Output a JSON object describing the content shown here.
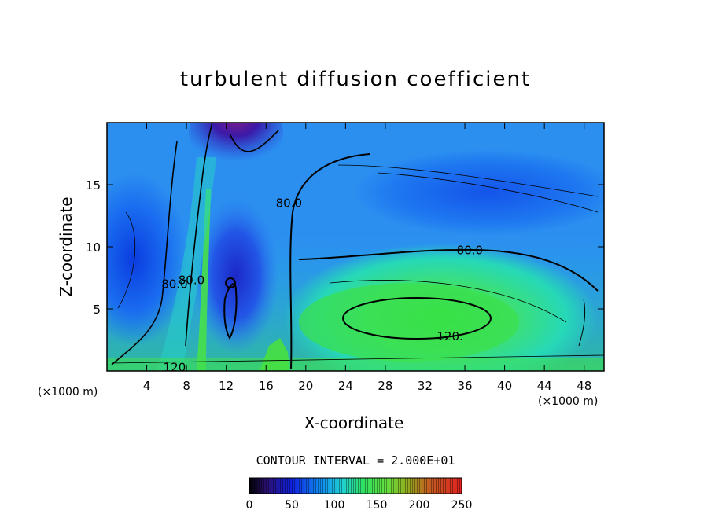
{
  "chart_data": {
    "type": "heatmap",
    "title": "turbulent diffusion coefficient",
    "xlabel": "X-coordinate",
    "ylabel": "Z-coordinate",
    "x_unit_label": "(×1000 m)",
    "y_unit_label": "(×1000 m)",
    "xlim": [
      0,
      50
    ],
    "ylim": [
      0,
      20
    ],
    "x_ticks": [
      4,
      8,
      12,
      16,
      20,
      24,
      28,
      32,
      36,
      40,
      44,
      48
    ],
    "y_ticks": [
      5,
      10,
      15
    ],
    "contour_interval_text": "CONTOUR INTERVAL = 2.000E+01",
    "contour_interval": 20,
    "contour_labels": [
      {
        "text": "80.0",
        "x": 36.5,
        "y": 9.7
      },
      {
        "text": "80.0",
        "x": 18.3,
        "y": 13.5
      },
      {
        "text": "80.0",
        "x": 6.8,
        "y": 7.0
      },
      {
        "text": "80.0",
        "x": 8.5,
        "y": 7.3
      },
      {
        "text": "120.",
        "x": 34.5,
        "y": 2.8
      },
      {
        "text": "120",
        "x": 6.8,
        "y": 0.3
      }
    ],
    "colorbar": {
      "min": 0,
      "max": 250,
      "ticks": [
        0,
        50,
        100,
        150,
        200,
        250
      ]
    }
  }
}
